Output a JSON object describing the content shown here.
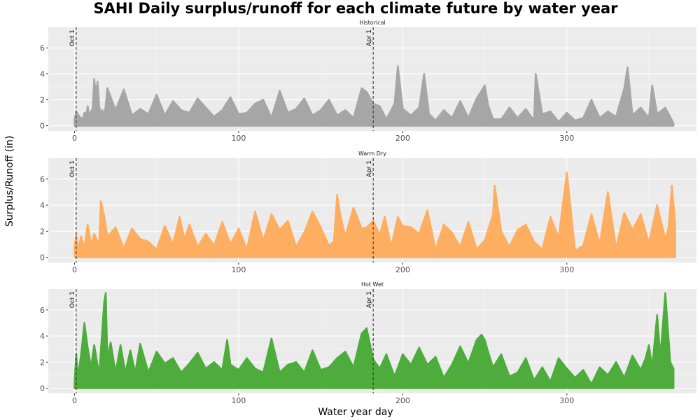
{
  "chart_data": {
    "type": "area",
    "title": "SAHI Daily surplus/runoff for each climate future by water year",
    "xlabel": "Water year day",
    "ylabel": "Surplus/Runoff (in)",
    "xlim": [
      -16,
      379
    ],
    "ylim": [
      -0.4,
      7.6
    ],
    "x_ticks": [
      0,
      100,
      200,
      300
    ],
    "y_ticks": [
      0,
      2,
      4,
      6
    ],
    "grid": true,
    "reference_lines": [
      {
        "x": 1,
        "label": "Oct 1"
      },
      {
        "x": 182,
        "label": "Apr 1"
      }
    ],
    "panels": [
      {
        "name": "Historical",
        "color": "#a6a6a6",
        "x": [
          0,
          1,
          2,
          3,
          4,
          5,
          6,
          7,
          8,
          9,
          10,
          11,
          12,
          13,
          14,
          15,
          16,
          17,
          18,
          19,
          20,
          25,
          30,
          35,
          40,
          45,
          50,
          55,
          60,
          65,
          70,
          75,
          80,
          85,
          90,
          95,
          100,
          105,
          110,
          115,
          120,
          125,
          130,
          135,
          140,
          145,
          150,
          155,
          160,
          165,
          170,
          175,
          178,
          182,
          186,
          190,
          195,
          197,
          200,
          205,
          210,
          213,
          216,
          220,
          225,
          230,
          235,
          240,
          245,
          250,
          252,
          255,
          260,
          265,
          270,
          275,
          280,
          281,
          285,
          290,
          295,
          300,
          305,
          310,
          315,
          320,
          325,
          330,
          335,
          337,
          340,
          345,
          350,
          352,
          355,
          360,
          365
        ],
        "values": [
          0.5,
          1.1,
          0.9,
          0.7,
          0.6,
          0.5,
          1.0,
          0.8,
          1.5,
          0.7,
          1.1,
          1.3,
          3.6,
          2.4,
          3.4,
          1.5,
          1.0,
          1.2,
          0.7,
          1.6,
          2.9,
          1.2,
          2.8,
          0.8,
          1.3,
          0.9,
          2.4,
          0.8,
          1.9,
          1.2,
          1.0,
          2.1,
          1.4,
          0.7,
          1.2,
          2.2,
          0.9,
          1.0,
          1.7,
          2.0,
          0.6,
          2.7,
          1.0,
          1.3,
          2.1,
          0.8,
          1.2,
          2.0,
          0.8,
          1.2,
          0.6,
          2.9,
          2.6,
          1.7,
          1.5,
          0.5,
          1.7,
          4.6,
          1.3,
          0.8,
          1.4,
          4.0,
          0.9,
          0.4,
          1.2,
          0.6,
          1.9,
          0.6,
          2.1,
          3.1,
          1.6,
          0.5,
          0.5,
          1.4,
          0.6,
          1.3,
          0.4,
          4.0,
          0.9,
          1.1,
          0.3,
          1.0,
          0.4,
          0.6,
          2.0,
          0.6,
          1.1,
          0.7,
          2.9,
          4.5,
          0.8,
          1.4,
          0.6,
          3.1,
          0.9,
          1.4,
          0.2
        ]
      },
      {
        "name": "Warm Dry",
        "color": "#fdae61",
        "x": [
          0,
          1,
          2,
          4,
          6,
          8,
          10,
          12,
          15,
          16,
          18,
          20,
          25,
          30,
          35,
          40,
          45,
          50,
          55,
          60,
          64,
          67,
          70,
          75,
          80,
          85,
          90,
          95,
          100,
          105,
          110,
          115,
          120,
          125,
          130,
          135,
          140,
          145,
          150,
          155,
          158,
          160,
          162,
          165,
          170,
          175,
          178,
          182,
          186,
          189,
          193,
          197,
          200,
          205,
          210,
          215,
          220,
          225,
          230,
          235,
          240,
          245,
          250,
          255,
          256,
          260,
          265,
          270,
          275,
          280,
          285,
          290,
          295,
          300,
          305,
          310,
          315,
          320,
          325,
          330,
          335,
          340,
          345,
          350,
          355,
          360,
          362,
          364,
          366
        ],
        "values": [
          0.8,
          1.8,
          0.5,
          1.6,
          0.7,
          2.5,
          1.0,
          1.8,
          0.9,
          4.3,
          3.2,
          1.6,
          2.3,
          0.7,
          2.2,
          1.4,
          1.2,
          0.6,
          2.4,
          1.0,
          3.1,
          1.4,
          2.5,
          0.8,
          1.8,
          0.9,
          2.7,
          1.0,
          2.2,
          0.6,
          3.5,
          1.3,
          3.3,
          2.1,
          2.8,
          0.8,
          1.9,
          3.5,
          2.3,
          0.9,
          1.2,
          4.8,
          3.2,
          1.6,
          3.8,
          2.2,
          2.3,
          2.8,
          1.7,
          3.1,
          0.8,
          3.1,
          2.4,
          2.3,
          1.8,
          3.6,
          0.6,
          2.5,
          1.9,
          0.8,
          2.7,
          0.6,
          1.3,
          3.3,
          5.5,
          2.0,
          0.8,
          2.1,
          2.5,
          1.2,
          0.6,
          3.1,
          1.5,
          6.5,
          0.5,
          0.9,
          3.3,
          1.0,
          5.0,
          0.7,
          3.4,
          2.1,
          3.3,
          1.1,
          4.0,
          1.4,
          2.3,
          5.5,
          2.6
        ]
      },
      {
        "name": "Hot Wet",
        "color": "#4dac3c",
        "x": [
          0,
          1,
          2,
          4,
          6,
          8,
          10,
          12,
          15,
          18,
          19,
          20,
          22,
          25,
          28,
          31,
          34,
          37,
          40,
          45,
          50,
          55,
          60,
          65,
          70,
          75,
          80,
          85,
          90,
          93,
          95,
          100,
          105,
          110,
          115,
          120,
          125,
          130,
          135,
          140,
          145,
          150,
          155,
          160,
          165,
          170,
          175,
          178,
          182,
          186,
          190,
          195,
          200,
          205,
          210,
          215,
          220,
          225,
          230,
          235,
          240,
          245,
          248,
          250,
          252,
          255,
          260,
          265,
          270,
          275,
          280,
          285,
          290,
          295,
          300,
          305,
          310,
          315,
          320,
          325,
          330,
          335,
          340,
          345,
          348,
          350,
          352,
          355,
          357,
          360,
          363,
          365
        ],
        "values": [
          0.4,
          2.6,
          0.8,
          2.6,
          5.0,
          3.1,
          1.6,
          3.3,
          1.0,
          6.5,
          7.3,
          2.3,
          3.5,
          1.2,
          3.3,
          1.2,
          2.9,
          1.2,
          3.4,
          1.2,
          2.8,
          1.9,
          2.3,
          1.2,
          1.9,
          2.7,
          1.5,
          2.0,
          1.4,
          3.7,
          1.8,
          1.4,
          2.3,
          1.5,
          1.2,
          3.8,
          1.2,
          1.8,
          2.0,
          1.2,
          2.9,
          1.4,
          1.6,
          2.3,
          2.8,
          1.6,
          4.2,
          4.6,
          2.2,
          1.5,
          2.6,
          0.9,
          2.6,
          1.8,
          3.1,
          1.8,
          2.4,
          0.8,
          1.8,
          3.2,
          1.9,
          3.7,
          4.1,
          3.7,
          2.8,
          1.6,
          2.6,
          0.9,
          1.2,
          2.3,
          0.6,
          1.6,
          0.5,
          2.3,
          1.5,
          0.8,
          1.4,
          0.3,
          1.6,
          1.0,
          2.0,
          0.8,
          2.5,
          1.4,
          2.3,
          3.3,
          1.6,
          5.6,
          2.4,
          7.3,
          2.0,
          1.5
        ]
      }
    ]
  }
}
